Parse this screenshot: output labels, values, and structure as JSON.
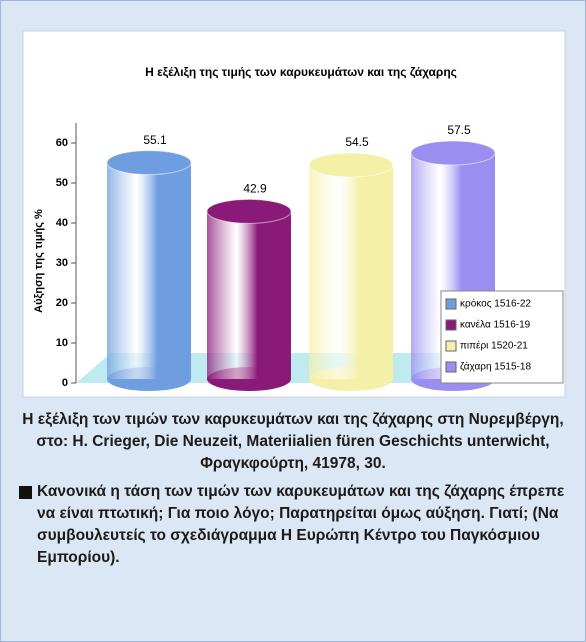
{
  "chart_data": {
    "type": "bar",
    "title": "Η εξέλιξη της τιμής των καρυκευμάτων και της ζάχαρης",
    "ylabel": "Αύξηση της τιμής %",
    "categories": [
      "κρόκος 1516-22",
      "κανέλα 1516-19",
      "πιπέρι 1520-21",
      "ζάχαρη 1515-18"
    ],
    "values": [
      55.1,
      42.9,
      54.5,
      57.5
    ],
    "colors": [
      "#6f9ee0",
      "#8a1a78",
      "#f4f0a8",
      "#9a8ef0"
    ],
    "ylim": [
      0,
      65
    ],
    "yticks": [
      0,
      10,
      20,
      30,
      40,
      50,
      60
    ],
    "legend": "lower right"
  },
  "caption": "Η εξέλιξη των τιμών των καρυκευμάτων και της ζάχαρης στη Νυρεμβέργη, στο: H. Crieger, Die Neuzeit, Materiialien füren Geschichts unterwicht, Φραγκφούρτη, 41978, 30.",
  "question": "Κανονικά η τάση των τιμών των καρυκευμάτων και της ζάχαρης έπρεπε να είναι πτωτική; Για ποιο λόγο; Παρατηρείται όμως αύξηση. Γιατί; (Να συμβουλευτείς το σχεδιάγραμμα Η Ευρώπη Κέντρο του Παγκόσμιου Εμπορίου)."
}
